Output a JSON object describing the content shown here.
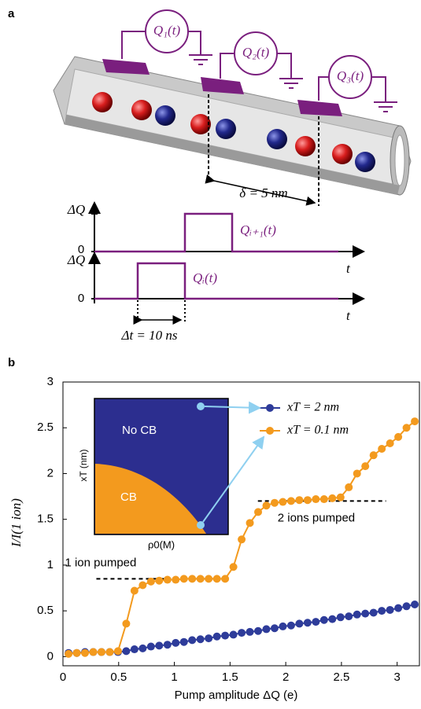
{
  "panel_a": {
    "label": "a",
    "pump_labels": [
      "Q₁(t)",
      "Q₂(t)",
      "Q₃(t)"
    ],
    "spacing": "δ = 5 nm",
    "upper_plot": {
      "y_label": "ΔQ",
      "zero": "0",
      "signal": "Qᵢ₊₁(t)",
      "x_label": "t"
    },
    "lower_plot": {
      "y_label": "ΔQ",
      "zero": "0",
      "signal": "Qᵢ(t)",
      "x_label": "t"
    },
    "duration": "Δt = 10 ns"
  },
  "chart_data": {
    "type": "line",
    "panel_label": "b",
    "x_label": "Pump amplitude  ΔQ (e)",
    "y_label": "I/I(1 ion)",
    "x": [
      0.05,
      0.124,
      0.198,
      0.272,
      0.346,
      0.42,
      0.494,
      0.568,
      0.642,
      0.716,
      0.79,
      0.864,
      0.938,
      1.012,
      1.086,
      1.16,
      1.234,
      1.308,
      1.382,
      1.456,
      1.53,
      1.604,
      1.678,
      1.752,
      1.826,
      1.9,
      1.974,
      2.048,
      2.122,
      2.196,
      2.27,
      2.344,
      2.418,
      2.492,
      2.566,
      2.64,
      2.714,
      2.788,
      2.862,
      2.936,
      3.01,
      3.084,
      3.158
    ],
    "series": [
      {
        "name": "xT = 2 nm",
        "color": "#2e3c9a",
        "values": [
          0.04,
          0.04,
          0.05,
          0.05,
          0.05,
          0.05,
          0.05,
          0.06,
          0.08,
          0.09,
          0.11,
          0.12,
          0.13,
          0.15,
          0.16,
          0.18,
          0.19,
          0.2,
          0.22,
          0.23,
          0.24,
          0.26,
          0.27,
          0.28,
          0.3,
          0.31,
          0.33,
          0.34,
          0.36,
          0.37,
          0.38,
          0.4,
          0.41,
          0.43,
          0.44,
          0.46,
          0.47,
          0.48,
          0.5,
          0.51,
          0.53,
          0.55,
          0.57
        ]
      },
      {
        "name": "xT = 0.1 nm",
        "color": "#f39a1e",
        "values": [
          0.03,
          0.04,
          0.04,
          0.05,
          0.05,
          0.05,
          0.06,
          0.36,
          0.72,
          0.78,
          0.82,
          0.83,
          0.84,
          0.84,
          0.85,
          0.85,
          0.85,
          0.85,
          0.85,
          0.85,
          0.98,
          1.28,
          1.46,
          1.58,
          1.65,
          1.68,
          1.69,
          1.7,
          1.71,
          1.71,
          1.72,
          1.72,
          1.73,
          1.74,
          1.85,
          2.0,
          2.08,
          2.2,
          2.27,
          2.33,
          2.4,
          2.5,
          2.57
        ]
      }
    ],
    "xlim": [
      0,
      3.2
    ],
    "ylim": [
      -0.1,
      3
    ],
    "xticks": [
      0,
      0.5,
      1,
      1.5,
      2,
      2.5,
      3
    ],
    "yticks": [
      0,
      0.5,
      1,
      1.5,
      2,
      2.5,
      3
    ],
    "reference_lines": [
      {
        "y": 0.85,
        "x": [
          0.3,
          1.5
        ],
        "label": "1 ion pumped"
      },
      {
        "y": 1.7,
        "x": [
          1.75,
          2.9
        ],
        "label": "2 ions pumped"
      }
    ],
    "inset": {
      "upper_region": "No CB",
      "lower_region": "CB",
      "y_label": "xT (nm)",
      "x_label": "ρ0(M)"
    }
  }
}
